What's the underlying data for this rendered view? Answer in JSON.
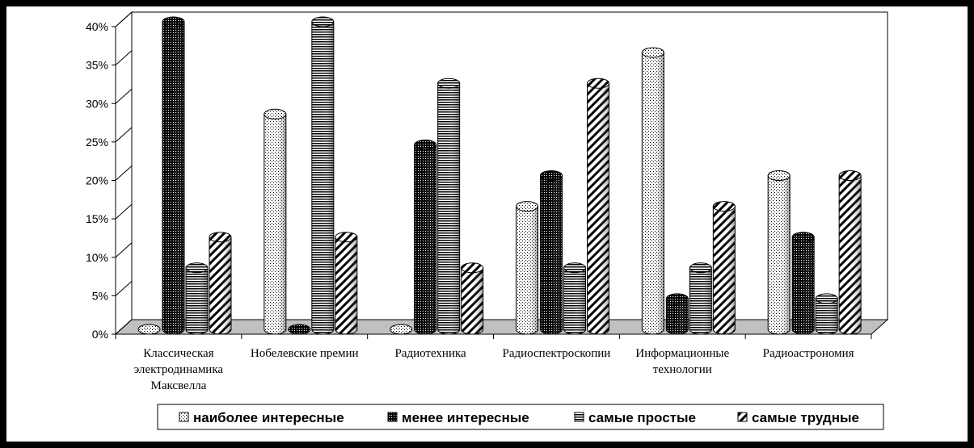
{
  "chart_data": {
    "type": "bar",
    "categories": [
      [
        "Классическая",
        "электродинамика",
        "Максвелла"
      ],
      [
        "Нобелевские премии"
      ],
      [
        "Радиотехника"
      ],
      [
        "Радиоспектроскопии"
      ],
      [
        "Информационные",
        "технологии"
      ],
      [
        "Радиоастрономия"
      ]
    ],
    "series": [
      {
        "name": "наиболее интересные",
        "values": [
          0,
          28,
          0,
          16,
          36,
          20
        ],
        "pattern": "dots"
      },
      {
        "name": "менее интересные",
        "values": [
          40,
          0,
          24,
          20,
          4,
          12
        ],
        "pattern": "dark"
      },
      {
        "name": "самые простые",
        "values": [
          8,
          40,
          32,
          8,
          8,
          4
        ],
        "pattern": "hlines"
      },
      {
        "name": "самые трудные",
        "values": [
          12,
          12,
          8,
          32,
          16,
          20
        ],
        "pattern": "diag"
      }
    ],
    "y_ticks": [
      "0%",
      "5%",
      "10%",
      "15%",
      "20%",
      "25%",
      "30%",
      "35%",
      "40%"
    ],
    "ylim": [
      0,
      40
    ],
    "grid": false,
    "legend_position": "bottom",
    "colors": {
      "background": "#000000",
      "plot": "#ffffff",
      "floor": "#c0c0c0"
    }
  }
}
